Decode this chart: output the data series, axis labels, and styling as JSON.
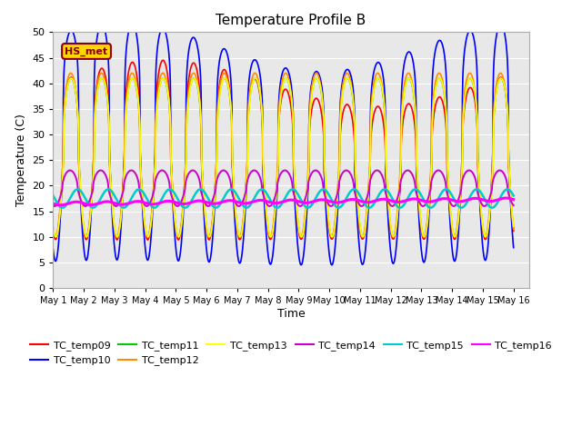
{
  "title": "Temperature Profile B",
  "xlabel": "Time",
  "ylabel": "Temperature (C)",
  "ylim": [
    0,
    50
  ],
  "annotation": "HS_met",
  "annotation_color": "#8B0000",
  "annotation_bg": "#FFD700",
  "bg_color": "#E8E8E8",
  "series_colors": {
    "TC_temp09": "#FF0000",
    "TC_temp10": "#0000FF",
    "TC_temp11": "#00CC00",
    "TC_temp12": "#FF8C00",
    "TC_temp13": "#FFFF00",
    "TC_temp14": "#CC00CC",
    "TC_temp15": "#00CCCC",
    "TC_temp16": "#FF00FF"
  },
  "series_order": [
    "TC_temp09",
    "TC_temp10",
    "TC_temp11",
    "TC_temp12",
    "TC_temp13",
    "TC_temp14",
    "TC_temp15",
    "TC_temp16"
  ],
  "yticks": [
    0,
    5,
    10,
    15,
    20,
    25,
    30,
    35,
    40,
    45,
    50
  ],
  "xtick_labels": [
    "May 1",
    "May 2",
    "May 3",
    "May 4",
    "May 5",
    "May 6",
    "May 7",
    "May 8",
    "May 9",
    "May 10",
    "May 11",
    "May 12",
    "May 13",
    "May 14",
    "May 15",
    "May 16"
  ],
  "figsize": [
    6.4,
    4.8
  ],
  "dpi": 100
}
